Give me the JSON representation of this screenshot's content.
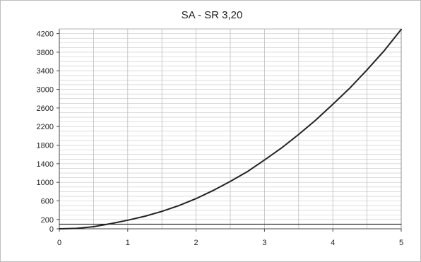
{
  "chart_data": {
    "type": "line",
    "title": "SA - SR 3,20",
    "xlabel": "",
    "ylabel": "",
    "xlim": [
      0,
      5
    ],
    "ylim": [
      0,
      4300
    ],
    "x_ticks": [
      0,
      1,
      2,
      3,
      4,
      5
    ],
    "x_tick_labels": [
      "0",
      "1",
      "2",
      "3",
      "4",
      "5"
    ],
    "y_ticks": [
      0,
      200,
      600,
      1000,
      1400,
      1800,
      2200,
      2600,
      3000,
      3400,
      3800,
      4200
    ],
    "y_tick_labels": [
      "0",
      "200",
      "600",
      "1000",
      "1400",
      "1800",
      "2200",
      "2600",
      "3000",
      "3400",
      "3800",
      "4200"
    ],
    "grid": true,
    "series": [
      {
        "color": "#222222",
        "x": [
          0,
          0.25,
          0.5,
          0.75,
          1,
          1.25,
          1.5,
          1.75,
          2,
          2.25,
          2.5,
          2.75,
          3,
          3.25,
          3.5,
          3.75,
          4,
          4.25,
          4.5,
          4.75,
          5
        ],
        "y": [
          0,
          10,
          45,
          110,
          185,
          270,
          375,
          500,
          650,
          825,
          1020,
          1230,
          1480,
          1740,
          2030,
          2340,
          2680,
          3030,
          3420,
          3830,
          4290
        ]
      },
      {
        "color": "#222222",
        "x": [
          0,
          5
        ],
        "y": [
          100,
          100
        ]
      }
    ]
  }
}
